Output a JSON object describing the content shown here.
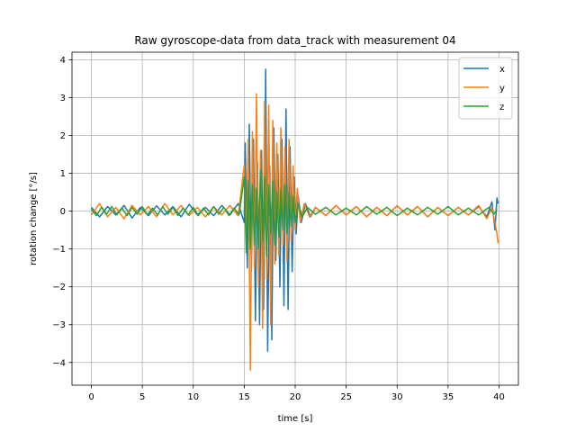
{
  "chart_data": {
    "type": "line",
    "title": "Raw gyroscope-data from data_track with measurement 04",
    "xlabel": "time [s]",
    "ylabel": "rotation change [°/s]",
    "xlim": [
      -1.9,
      41.9
    ],
    "ylim": [
      -4.6,
      4.2
    ],
    "xticks": [
      0,
      5,
      10,
      15,
      20,
      25,
      30,
      35,
      40
    ],
    "xtick_labels": [
      "0",
      "5",
      "10",
      "15",
      "20",
      "25",
      "30",
      "35",
      "40"
    ],
    "yticks": [
      -4,
      -3,
      -2,
      -1,
      0,
      1,
      2,
      3,
      4
    ],
    "ytick_labels": [
      "−4",
      "−3",
      "−2",
      "−1",
      "0",
      "1",
      "2",
      "3",
      "4"
    ],
    "grid": true,
    "legend": "top-right",
    "series": [
      {
        "name": "x",
        "color": "#1f77b4",
        "x": [
          0.0,
          0.8,
          1.6,
          2.4,
          3.2,
          4.0,
          4.8,
          5.6,
          6.4,
          7.2,
          8.0,
          8.8,
          9.6,
          10.4,
          11.2,
          12.0,
          12.8,
          13.6,
          14.4,
          15.0,
          15.1,
          15.3,
          15.5,
          15.7,
          15.9,
          16.1,
          16.3,
          16.5,
          16.7,
          16.9,
          17.1,
          17.3,
          17.5,
          17.7,
          17.9,
          18.1,
          18.3,
          18.5,
          18.7,
          18.9,
          19.1,
          19.3,
          19.5,
          19.7,
          19.9,
          20.1,
          20.3,
          20.6,
          21.0,
          21.5,
          22.0,
          23.0,
          24.0,
          25.0,
          26.0,
          27.0,
          28.0,
          29.0,
          30.0,
          31.0,
          32.0,
          33.0,
          34.0,
          35.0,
          36.0,
          37.0,
          38.0,
          38.8,
          39.3,
          39.6,
          39.8,
          39.9
        ],
        "y": [
          0.1,
          -0.15,
          0.12,
          -0.1,
          0.15,
          -0.18,
          0.1,
          -0.12,
          0.14,
          -0.1,
          0.12,
          -0.15,
          0.18,
          -0.1,
          0.1,
          -0.12,
          0.15,
          -0.1,
          0.2,
          -0.3,
          1.8,
          -1.5,
          2.3,
          -1.6,
          1.9,
          -2.9,
          1.3,
          -3.0,
          1.6,
          -2.6,
          3.75,
          -3.7,
          1.2,
          -3.4,
          2.2,
          -1.3,
          1.5,
          -2.0,
          1.9,
          -2.5,
          2.7,
          -2.6,
          1.7,
          -1.6,
          0.9,
          -0.6,
          0.4,
          -0.3,
          0.2,
          -0.15,
          0.1,
          -0.12,
          0.15,
          -0.1,
          0.12,
          -0.15,
          0.1,
          -0.12,
          0.14,
          -0.1,
          0.12,
          -0.15,
          0.1,
          -0.12,
          0.1,
          -0.1,
          0.12,
          -0.15,
          0.25,
          -0.5,
          0.35,
          0.2
        ]
      },
      {
        "name": "y",
        "color": "#ff7f0e",
        "x": [
          0.0,
          0.8,
          1.6,
          2.4,
          3.2,
          4.0,
          4.8,
          5.6,
          6.4,
          7.2,
          8.0,
          8.8,
          9.6,
          10.4,
          11.2,
          12.0,
          12.8,
          13.6,
          14.4,
          15.0,
          15.2,
          15.4,
          15.6,
          15.8,
          16.0,
          16.2,
          16.4,
          16.6,
          16.8,
          17.0,
          17.2,
          17.4,
          17.6,
          17.8,
          18.0,
          18.2,
          18.4,
          18.6,
          18.8,
          19.0,
          19.2,
          19.4,
          19.6,
          19.8,
          20.0,
          20.2,
          20.5,
          20.9,
          21.4,
          22.0,
          23.0,
          24.0,
          25.0,
          26.0,
          27.0,
          28.0,
          29.0,
          30.0,
          31.0,
          32.0,
          33.0,
          34.0,
          35.0,
          36.0,
          37.0,
          38.0,
          38.8,
          39.3,
          39.6,
          39.8,
          39.9
        ],
        "y": [
          -0.1,
          0.2,
          -0.15,
          0.1,
          -0.2,
          0.15,
          -0.1,
          0.12,
          -0.15,
          0.2,
          -0.1,
          0.15,
          -0.12,
          0.1,
          -0.15,
          0.12,
          -0.1,
          0.15,
          -0.12,
          1.2,
          -0.8,
          1.9,
          -4.2,
          2.1,
          -1.5,
          3.1,
          -2.0,
          1.6,
          -3.1,
          2.9,
          -1.8,
          2.8,
          -3.0,
          2.4,
          -1.4,
          1.8,
          -1.2,
          2.2,
          -0.9,
          1.7,
          -1.3,
          1.9,
          -0.8,
          1.2,
          -0.5,
          0.6,
          -0.3,
          0.2,
          -0.15,
          0.1,
          -0.12,
          0.15,
          -0.1,
          0.12,
          -0.15,
          0.1,
          -0.12,
          0.14,
          -0.1,
          0.12,
          -0.15,
          0.1,
          -0.12,
          0.1,
          -0.1,
          0.15,
          -0.2,
          0.1,
          -0.3,
          -0.6,
          -0.85
        ]
      },
      {
        "name": "z",
        "color": "#2ca02c",
        "x": [
          0.0,
          0.5,
          1.0,
          1.5,
          2.0,
          2.5,
          3.0,
          3.5,
          4.0,
          4.5,
          5.0,
          5.5,
          6.0,
          6.5,
          7.0,
          7.5,
          8.0,
          8.5,
          9.0,
          9.5,
          10.0,
          10.5,
          11.0,
          11.5,
          12.0,
          12.5,
          13.0,
          13.5,
          14.0,
          14.5,
          15.0,
          15.2,
          15.4,
          15.6,
          15.8,
          16.0,
          16.2,
          16.4,
          16.6,
          16.8,
          17.0,
          17.2,
          17.4,
          17.6,
          17.8,
          18.0,
          18.2,
          18.4,
          18.6,
          18.8,
          19.0,
          19.2,
          19.4,
          19.6,
          19.8,
          20.0,
          20.3,
          20.7,
          21.2,
          22.0,
          23.0,
          24.0,
          25.0,
          26.0,
          27.0,
          28.0,
          29.0,
          30.0,
          31.0,
          32.0,
          33.0,
          34.0,
          35.0,
          36.0,
          37.0,
          38.0,
          39.0,
          39.5,
          39.8
        ],
        "y": [
          0.05,
          -0.12,
          0.1,
          -0.08,
          0.12,
          -0.1,
          0.08,
          -0.12,
          0.1,
          -0.08,
          0.12,
          -0.1,
          0.08,
          -0.1,
          0.12,
          -0.08,
          0.1,
          -0.12,
          0.08,
          -0.1,
          0.1,
          -0.12,
          0.08,
          -0.1,
          0.12,
          -0.08,
          0.1,
          -0.12,
          0.08,
          -0.1,
          0.9,
          -1.1,
          0.8,
          -1.0,
          0.7,
          -0.9,
          0.6,
          -1.0,
          1.1,
          -0.8,
          0.9,
          -1.2,
          0.7,
          -0.6,
          0.8,
          -0.9,
          0.5,
          -0.7,
          0.6,
          -0.5,
          0.7,
          -0.6,
          0.5,
          -0.4,
          0.4,
          -0.3,
          0.2,
          -0.15,
          0.1,
          -0.08,
          0.1,
          -0.1,
          0.08,
          -0.1,
          0.12,
          -0.08,
          0.1,
          -0.12,
          0.08,
          -0.1,
          0.1,
          -0.08,
          0.12,
          -0.1,
          0.08,
          -0.1,
          0.1,
          -0.08,
          0.05
        ]
      }
    ]
  }
}
